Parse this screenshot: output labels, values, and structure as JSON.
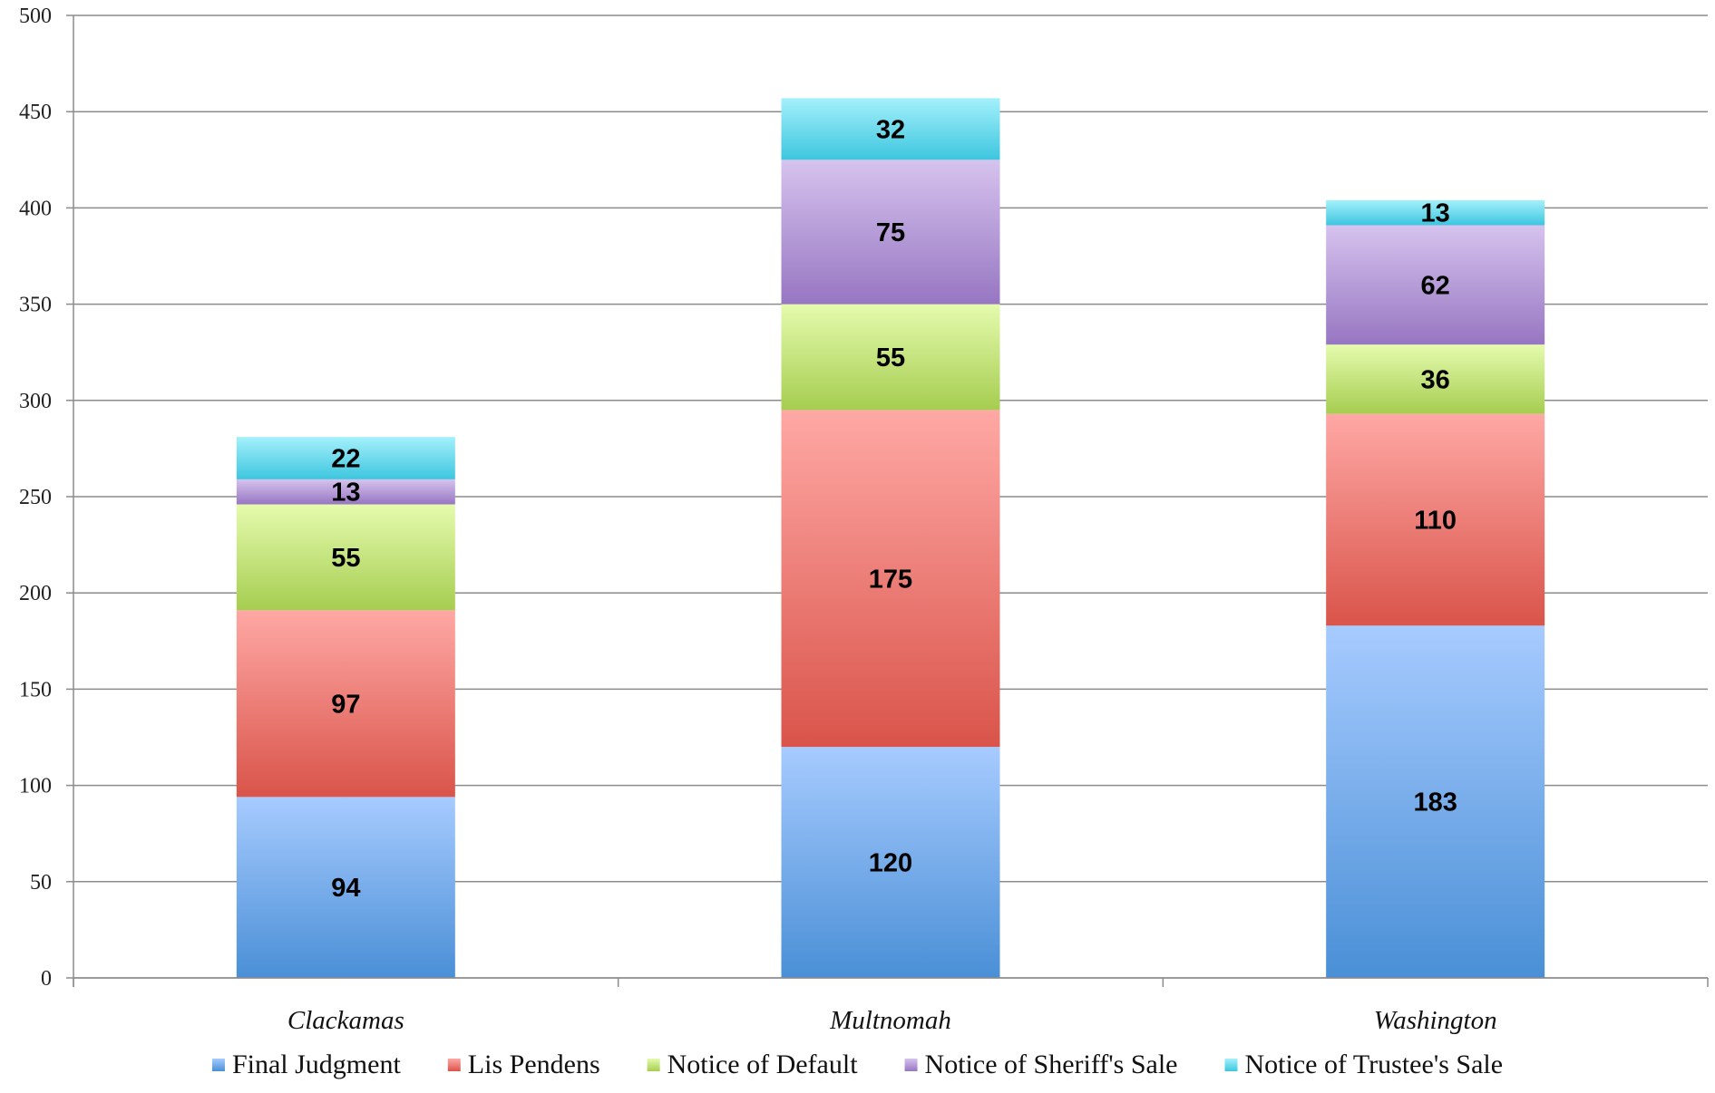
{
  "chart_data": {
    "type": "bar",
    "stacked": true,
    "title": "",
    "xlabel": "",
    "ylabel": "",
    "ylim": [
      0,
      500
    ],
    "yticks": [
      0,
      50,
      100,
      150,
      200,
      250,
      300,
      350,
      400,
      450,
      500
    ],
    "grid": true,
    "legend_position": "bottom",
    "categories": [
      "Clackamas",
      "Multnomah",
      "Washington"
    ],
    "series": [
      {
        "name": "Final Judgment",
        "values": [
          94,
          120,
          183
        ],
        "color_top": "#a7cbff",
        "color_bottom": "#4a8fd6"
      },
      {
        "name": "Lis Pendens",
        "values": [
          97,
          175,
          110
        ],
        "color_top": "#ffa8a5",
        "color_bottom": "#d9544a"
      },
      {
        "name": "Notice of Default",
        "values": [
          55,
          55,
          36
        ],
        "color_top": "#e5fbae",
        "color_bottom": "#a6cd50"
      },
      {
        "name": "Notice of Sheriff's Sale",
        "values": [
          13,
          75,
          62
        ],
        "color_top": "#d6c3ee",
        "color_bottom": "#9776c2"
      },
      {
        "name": "Notice of Trustee's Sale",
        "values": [
          22,
          32,
          13
        ],
        "color_top": "#a4f0fb",
        "color_bottom": "#3dc6df"
      }
    ]
  }
}
